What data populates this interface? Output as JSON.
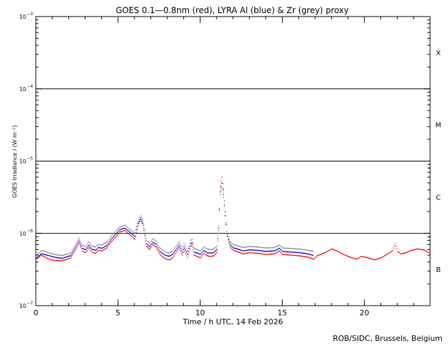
{
  "chart_data": {
    "type": "scatter",
    "title": "GOES 0.1—0.8nm (red), LYRA Al (blue) & Zr (grey) proxy",
    "xlabel": "Time / h UTC, 14 Feb 2026",
    "ylabel": "GOES Irradiance / (W m⁻²)",
    "xlim": [
      0,
      24
    ],
    "ylim": [
      1e-07,
      0.001
    ],
    "yscale": "log",
    "x_ticks": [
      0,
      5,
      10,
      15,
      20
    ],
    "y_ticks": [
      {
        "value": 1e-07,
        "base": "10",
        "exp": "−7"
      },
      {
        "value": 1e-06,
        "base": "10",
        "exp": "−6"
      },
      {
        "value": 1e-05,
        "base": "10",
        "exp": "−5"
      },
      {
        "value": 0.0001,
        "base": "10",
        "exp": "−4"
      },
      {
        "value": 0.001,
        "base": "10",
        "exp": "−3"
      }
    ],
    "threshold_lines": [
      1e-06,
      1e-05,
      0.0001
    ],
    "flare_classes": [
      {
        "label": "X",
        "value": 0.00032
      },
      {
        "label": "M",
        "value": 3.2e-05
      },
      {
        "label": "C",
        "value": 3.2e-06
      },
      {
        "label": "B",
        "value": 3.2e-07
      }
    ],
    "colors": {
      "goes": "#ff0000",
      "lyra_al": "#0000cc",
      "lyra_zr": "#888888"
    },
    "series": [
      {
        "key": "goes",
        "x": [
          0.0,
          0.3,
          0.6,
          0.9,
          1.2,
          1.5,
          1.8,
          2.1,
          2.4,
          2.6,
          2.8,
          3.0,
          3.2,
          3.4,
          3.6,
          3.8,
          4.0,
          4.3,
          4.6,
          4.9,
          5.1,
          5.4,
          5.7,
          6.0,
          6.2,
          6.35,
          6.5,
          6.7,
          6.9,
          7.1,
          7.3,
          7.5,
          7.7,
          7.9,
          8.1,
          8.3,
          8.5,
          8.7,
          8.9,
          9.0,
          9.2,
          9.4,
          9.5,
          9.6,
          9.8,
          10.0,
          10.2,
          10.4,
          10.6,
          10.8,
          11.0,
          11.1,
          11.2,
          11.3,
          11.4,
          11.5,
          11.6,
          11.8,
          12.0,
          12.3,
          12.6,
          13.0,
          13.5,
          14.0,
          14.5,
          14.8,
          15.0,
          15.5,
          16.0,
          16.5,
          16.9,
          17.1,
          17.4,
          17.7,
          18.0,
          18.4,
          18.8,
          19.2,
          19.5,
          19.8,
          20.2,
          20.6,
          21.0,
          21.4,
          21.7,
          21.85,
          22.0,
          22.2,
          22.5,
          22.8,
          23.2,
          23.6,
          24.0
        ],
        "y": [
          4.4e-07,
          5e-07,
          4.6e-07,
          4.3e-07,
          4.2e-07,
          4.2e-07,
          4.3e-07,
          4.6e-07,
          6e-07,
          7.4e-07,
          5.7e-07,
          5.4e-07,
          6.4e-07,
          5.5e-07,
          5.3e-07,
          5.9e-07,
          5.7e-07,
          6.3e-07,
          7.8e-07,
          9.2e-07,
          1.05e-06,
          1.1e-06,
          9.5e-07,
          8.3e-07,
          1.3e-06,
          1.55e-06,
          1.3e-06,
          6.6e-07,
          6e-07,
          7e-07,
          6.4e-07,
          5.2e-07,
          4.7e-07,
          4.4e-07,
          4.3e-07,
          4.6e-07,
          5.4e-07,
          6.3e-07,
          5e-07,
          6e-07,
          4.7e-07,
          6.6e-07,
          7e-07,
          5e-07,
          4.8e-07,
          4.6e-07,
          5.3e-07,
          4.9e-07,
          4.8e-07,
          4.9e-07,
          5.5e-07,
          1.1e-06,
          4.5e-06,
          6e-06,
          4e-06,
          2e-06,
          1e-06,
          6.5e-07,
          5.8e-07,
          5.5e-07,
          5.2e-07,
          5.4e-07,
          5.3e-07,
          5.1e-07,
          5.2e-07,
          5.7e-07,
          5.1e-07,
          5e-07,
          4.9e-07,
          4.7e-07,
          4.4e-07,
          4.9e-07,
          5.2e-07,
          5.6e-07,
          6.1e-07,
          5.6e-07,
          5e-07,
          4.6e-07,
          4.4e-07,
          4.8e-07,
          4.6e-07,
          4.3e-07,
          4.6e-07,
          5.2e-07,
          5.8e-07,
          7.3e-07,
          5.6e-07,
          5.2e-07,
          5.4e-07,
          5.8e-07,
          6.1e-07,
          5.9e-07,
          5.3e-07
        ]
      },
      {
        "key": "lyra_al",
        "x": [
          0.0,
          0.3,
          0.6,
          0.9,
          1.2,
          1.5,
          1.6,
          2.1,
          2.4,
          2.6,
          2.8,
          3.0,
          3.2,
          3.4,
          3.6,
          3.8,
          4.0,
          4.3,
          4.6,
          4.9,
          5.1,
          5.4,
          5.7,
          6.0,
          6.2,
          6.35,
          6.5,
          6.7,
          6.9,
          7.1,
          7.3,
          7.5,
          7.7,
          7.9,
          8.1,
          8.3,
          8.5,
          8.7,
          8.9,
          9.0,
          9.2,
          9.4,
          9.5,
          9.6,
          9.8,
          10.0,
          10.2,
          10.4,
          10.6,
          10.8,
          11.0,
          11.1,
          11.2,
          11.3,
          11.4,
          11.5,
          11.6,
          11.8,
          12.0,
          12.3,
          12.6,
          13.0,
          13.5,
          14.0,
          14.5,
          14.8,
          15.0,
          15.5,
          16.0,
          16.5,
          16.9
        ],
        "y": [
          4.6e-07,
          5.3e-07,
          5.1e-07,
          4.9e-07,
          4.7e-07,
          4.6e-07,
          4.6e-07,
          5e-07,
          6.6e-07,
          8e-07,
          6.3e-07,
          6e-07,
          7e-07,
          6.1e-07,
          5.9e-07,
          6.5e-07,
          6.3e-07,
          6.9e-07,
          8.6e-07,
          1.02e-06,
          1.15e-06,
          1.2e-06,
          1.05e-06,
          9.2e-07,
          1.4e-06,
          1.65e-06,
          1.4e-06,
          7.3e-07,
          6.6e-07,
          7.7e-07,
          7.1e-07,
          5.8e-07,
          5.3e-07,
          5e-07,
          4.9e-07,
          5.2e-07,
          6e-07,
          7e-07,
          5.6e-07,
          6.6e-07,
          5.3e-07,
          7.3e-07,
          7.6e-07,
          5.6e-07,
          5.4e-07,
          5.2e-07,
          5.9e-07,
          5.5e-07,
          5.4e-07,
          5.5e-07,
          6.1e-07,
          1.2e-06,
          3.8e-06,
          5e-06,
          3.5e-06,
          1.8e-06,
          1e-06,
          7.1e-07,
          6.4e-07,
          6.1e-07,
          5.8e-07,
          6e-07,
          5.9e-07,
          5.7e-07,
          5.8e-07,
          6.3e-07,
          5.7e-07,
          5.6e-07,
          5.5e-07,
          5.3e-07,
          5e-07
        ]
      },
      {
        "key": "lyra_zr",
        "x": [
          0.0,
          0.3,
          0.6,
          0.9,
          1.2,
          1.5,
          1.6,
          2.1,
          2.4,
          2.6,
          2.8,
          3.0,
          3.2,
          3.4,
          3.6,
          3.8,
          4.0,
          4.3,
          4.6,
          4.9,
          5.1,
          5.4,
          5.7,
          6.0,
          6.2,
          6.35,
          6.5,
          6.7,
          6.9,
          7.1,
          7.3,
          7.5,
          7.7,
          7.9,
          8.1,
          8.3,
          8.5,
          8.7,
          8.9,
          9.0,
          9.2,
          9.4,
          9.5,
          9.6,
          9.8,
          10.0,
          10.2,
          10.4,
          10.6,
          10.8,
          11.0,
          11.1,
          11.2,
          11.3,
          11.4,
          11.5,
          11.6,
          11.8,
          12.0,
          12.3,
          12.6,
          13.0,
          13.5,
          14.0,
          14.5,
          14.8,
          15.0,
          15.5,
          16.0,
          16.5,
          16.9
        ],
        "y": [
          4.9e-07,
          5.7e-07,
          5.5e-07,
          5.2e-07,
          5e-07,
          4.9e-07,
          4.9e-07,
          5.3e-07,
          7.1e-07,
          8.6e-07,
          6.8e-07,
          6.5e-07,
          7.6e-07,
          6.6e-07,
          6.4e-07,
          7e-07,
          6.8e-07,
          7.5e-07,
          9.3e-07,
          1.1e-06,
          1.22e-06,
          1.28e-06,
          1.12e-06,
          9.9e-07,
          1.5e-06,
          1.75e-06,
          1.5e-06,
          7.9e-07,
          7.2e-07,
          8.3e-07,
          7.7e-07,
          6.3e-07,
          5.8e-07,
          5.4e-07,
          5.3e-07,
          5.6e-07,
          6.5e-07,
          7.6e-07,
          6.1e-07,
          7.2e-07,
          5.8e-07,
          7.9e-07,
          8.2e-07,
          6.1e-07,
          5.9e-07,
          5.6e-07,
          6.4e-07,
          6e-07,
          5.9e-07,
          6e-07,
          6.6e-07,
          1.25e-06,
          3.4e-06,
          4.4e-06,
          3.1e-06,
          1.7e-06,
          1.05e-06,
          7.6e-07,
          6.9e-07,
          6.6e-07,
          6.3e-07,
          6.5e-07,
          6.4e-07,
          6.2e-07,
          6.3e-07,
          6.8e-07,
          6.2e-07,
          6.1e-07,
          6e-07,
          5.8e-07,
          5.5e-07
        ]
      }
    ]
  },
  "credit": "ROB/SIDC, Brussels, Belgium"
}
